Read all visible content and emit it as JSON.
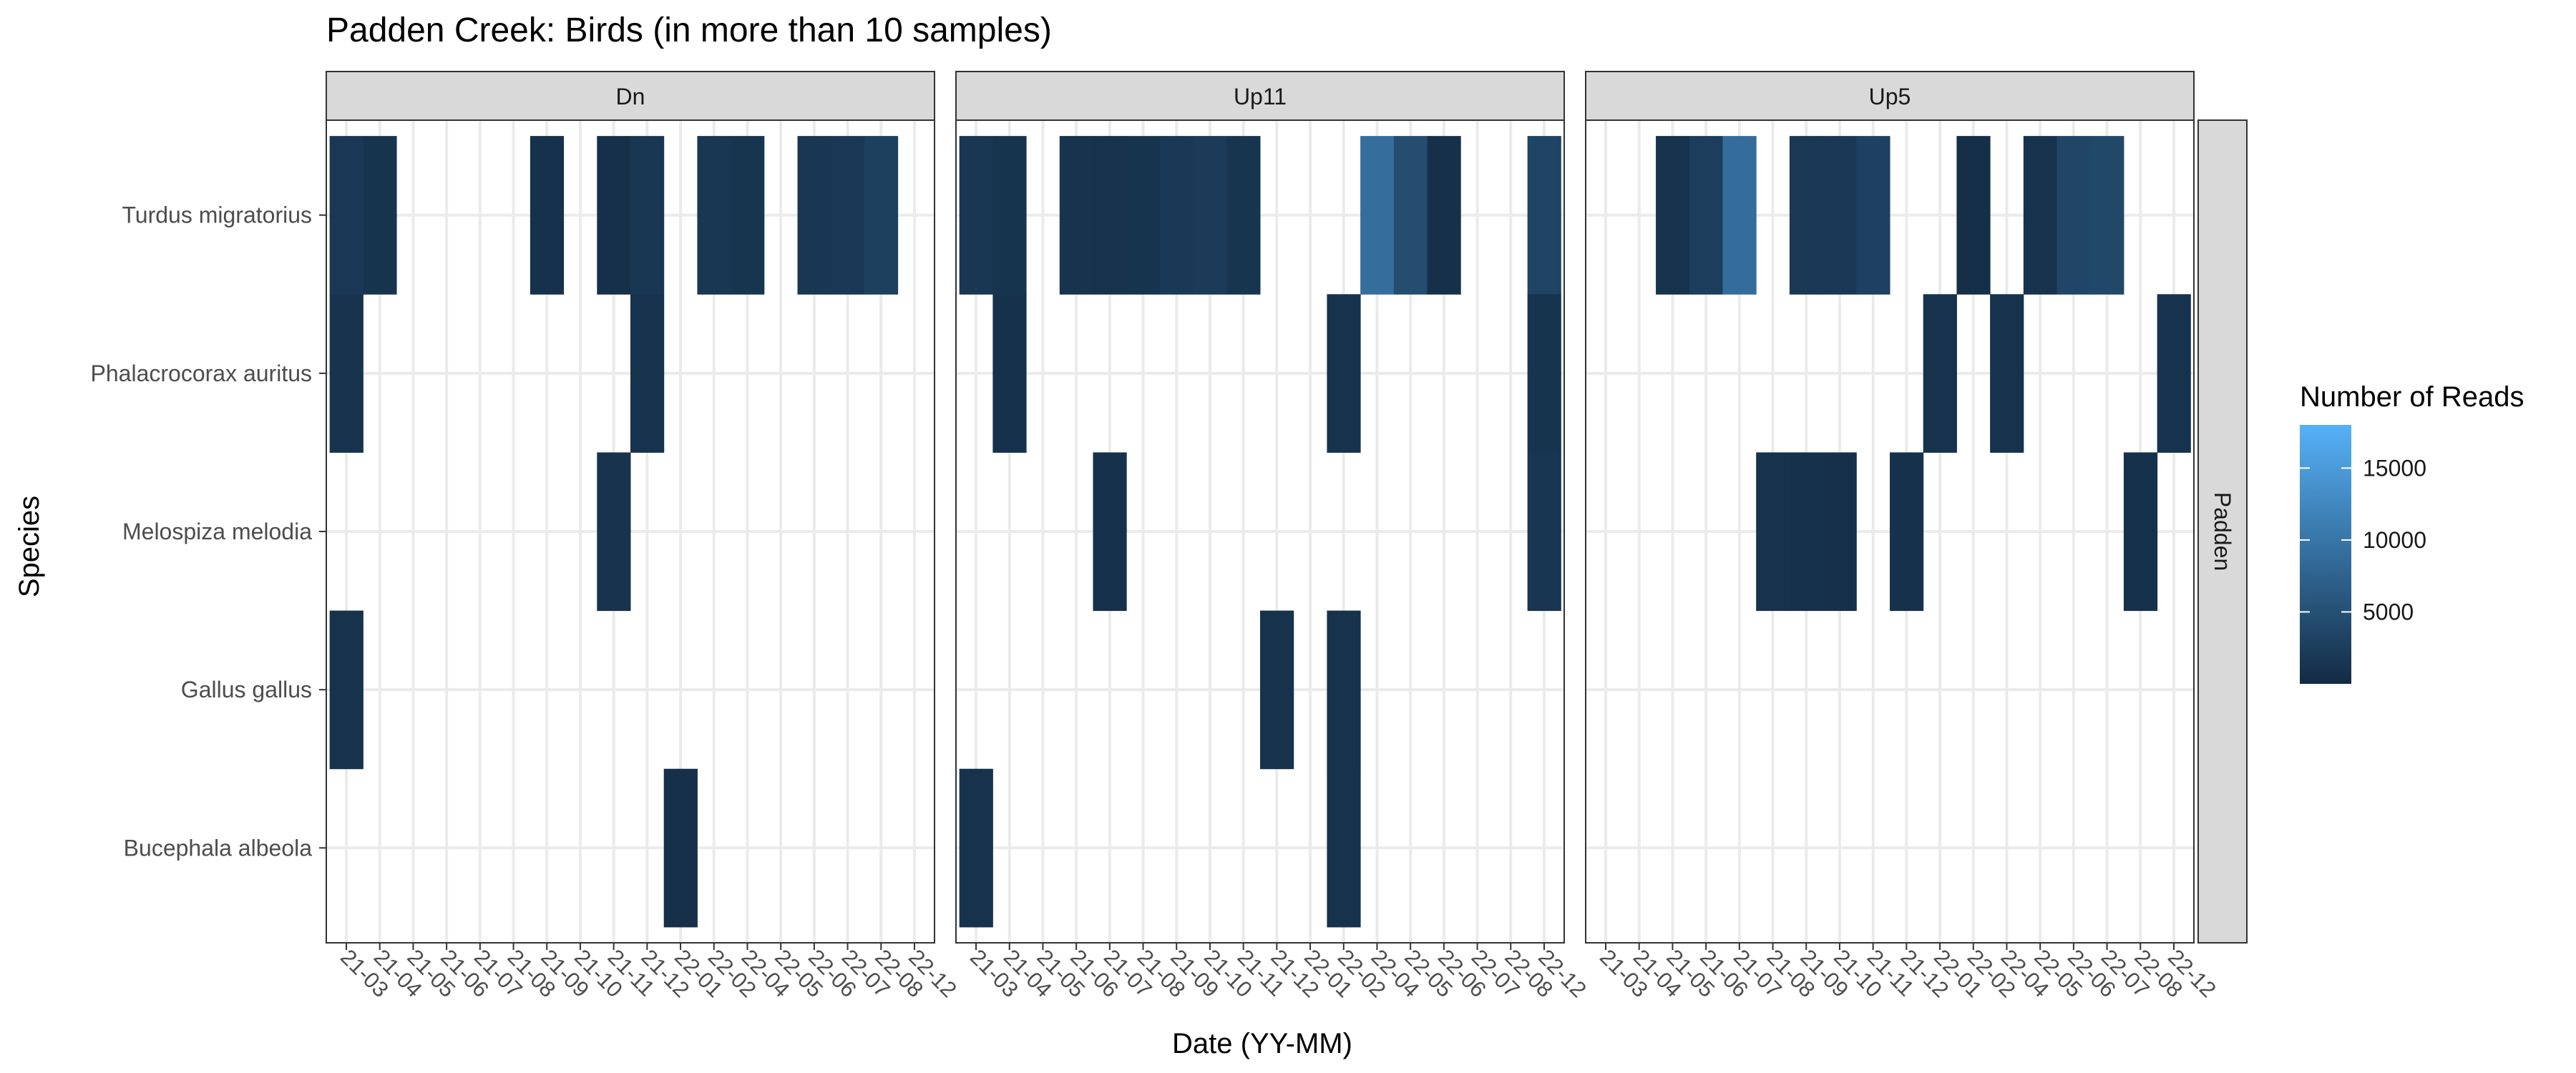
{
  "chart_data": {
    "type": "heatmap",
    "title": "Padden Creek: Birds (in more than 10 samples)",
    "xlabel": "Date (YY-MM)",
    "ylabel": "Species",
    "species": [
      "Turdus migratorius",
      "Phalacrocorax auritus",
      "Melospiza melodia",
      "Gallus gallus",
      "Bucephala albeola"
    ],
    "dates": [
      "21-03",
      "21-04",
      "21-05",
      "21-06",
      "21-07",
      "21-08",
      "21-09",
      "21-10",
      "21-11",
      "21-12",
      "22-01",
      "22-02",
      "22-04",
      "22-05",
      "22-06",
      "22-07",
      "22-08",
      "22-12"
    ],
    "row_strip": "Padden",
    "panels": [
      {
        "name": "Dn",
        "cells": [
          {
            "species": "Turdus migratorius",
            "date": "21-03",
            "value": 1800
          },
          {
            "species": "Turdus migratorius",
            "date": "21-04",
            "value": 1200
          },
          {
            "species": "Turdus migratorius",
            "date": "21-09",
            "value": 800
          },
          {
            "species": "Turdus migratorius",
            "date": "21-11",
            "value": 700
          },
          {
            "species": "Turdus migratorius",
            "date": "21-12",
            "value": 1600
          },
          {
            "species": "Turdus migratorius",
            "date": "22-02",
            "value": 1500
          },
          {
            "species": "Turdus migratorius",
            "date": "22-04",
            "value": 1300
          },
          {
            "species": "Turdus migratorius",
            "date": "22-06",
            "value": 1500
          },
          {
            "species": "Turdus migratorius",
            "date": "22-07",
            "value": 1800
          },
          {
            "species": "Turdus migratorius",
            "date": "22-08",
            "value": 2800
          },
          {
            "species": "Phalacrocorax auritus",
            "date": "21-03",
            "value": 1100
          },
          {
            "species": "Phalacrocorax auritus",
            "date": "21-12",
            "value": 1000
          },
          {
            "species": "Melospiza melodia",
            "date": "21-11",
            "value": 1100
          },
          {
            "species": "Gallus gallus",
            "date": "21-03",
            "value": 900
          },
          {
            "species": "Bucephala albeola",
            "date": "22-01",
            "value": 700
          }
        ]
      },
      {
        "name": "Up11",
        "cells": [
          {
            "species": "Turdus migratorius",
            "date": "21-03",
            "value": 1500
          },
          {
            "species": "Turdus migratorius",
            "date": "21-04",
            "value": 1200
          },
          {
            "species": "Turdus migratorius",
            "date": "21-06",
            "value": 1100
          },
          {
            "species": "Turdus migratorius",
            "date": "21-07",
            "value": 1000
          },
          {
            "species": "Turdus migratorius",
            "date": "21-08",
            "value": 1200
          },
          {
            "species": "Turdus migratorius",
            "date": "21-09",
            "value": 1900
          },
          {
            "species": "Turdus migratorius",
            "date": "21-10",
            "value": 2100
          },
          {
            "species": "Turdus migratorius",
            "date": "21-11",
            "value": 1300
          },
          {
            "species": "Turdus migratorius",
            "date": "22-04",
            "value": 9000
          },
          {
            "species": "Turdus migratorius",
            "date": "22-05",
            "value": 4500
          },
          {
            "species": "Turdus migratorius",
            "date": "22-06",
            "value": 700
          },
          {
            "species": "Turdus migratorius",
            "date": "22-12",
            "value": 3300
          },
          {
            "species": "Phalacrocorax auritus",
            "date": "21-04",
            "value": 800
          },
          {
            "species": "Phalacrocorax auritus",
            "date": "22-02",
            "value": 1000
          },
          {
            "species": "Phalacrocorax auritus",
            "date": "22-12",
            "value": 1200
          },
          {
            "species": "Melospiza melodia",
            "date": "21-07",
            "value": 800
          },
          {
            "species": "Melospiza melodia",
            "date": "22-12",
            "value": 1400
          },
          {
            "species": "Gallus gallus",
            "date": "21-12",
            "value": 900
          },
          {
            "species": "Gallus gallus",
            "date": "22-02",
            "value": 900
          },
          {
            "species": "Bucephala albeola",
            "date": "21-03",
            "value": 1000
          },
          {
            "species": "Bucephala albeola",
            "date": "22-02",
            "value": 1000
          }
        ]
      },
      {
        "name": "Up5",
        "cells": [
          {
            "species": "Turdus migratorius",
            "date": "21-05",
            "value": 900
          },
          {
            "species": "Turdus migratorius",
            "date": "21-06",
            "value": 2400
          },
          {
            "species": "Turdus migratorius",
            "date": "21-07",
            "value": 8800
          },
          {
            "species": "Turdus migratorius",
            "date": "21-09",
            "value": 1700
          },
          {
            "species": "Turdus migratorius",
            "date": "21-10",
            "value": 1800
          },
          {
            "species": "Turdus migratorius",
            "date": "21-11",
            "value": 3000
          },
          {
            "species": "Turdus migratorius",
            "date": "22-02",
            "value": 600
          },
          {
            "species": "Turdus migratorius",
            "date": "22-05",
            "value": 1000
          },
          {
            "species": "Turdus migratorius",
            "date": "22-06",
            "value": 3500
          },
          {
            "species": "Turdus migratorius",
            "date": "22-07",
            "value": 3800
          },
          {
            "species": "Phalacrocorax auritus",
            "date": "22-01",
            "value": 900
          },
          {
            "species": "Phalacrocorax auritus",
            "date": "22-04",
            "value": 900
          },
          {
            "species": "Phalacrocorax auritus",
            "date": "22-12",
            "value": 1000
          },
          {
            "species": "Melospiza melodia",
            "date": "21-08",
            "value": 900
          },
          {
            "species": "Melospiza melodia",
            "date": "21-09",
            "value": 800
          },
          {
            "species": "Melospiza melodia",
            "date": "21-10",
            "value": 700
          },
          {
            "species": "Melospiza melodia",
            "date": "21-12",
            "value": 800
          },
          {
            "species": "Melospiza melodia",
            "date": "22-08",
            "value": 800
          }
        ]
      }
    ],
    "legend": {
      "title": "Number of Reads",
      "position": "right",
      "ticks": [
        5000,
        10000,
        15000
      ],
      "range": [
        0,
        18000
      ],
      "color_low": "#132b43",
      "color_high": "#56b1f7"
    },
    "grid": true
  }
}
